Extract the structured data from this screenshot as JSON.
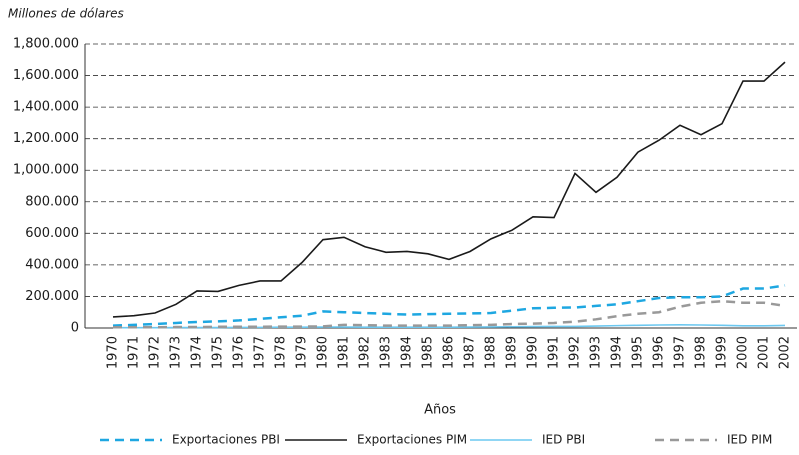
{
  "chart_data": {
    "type": "line",
    "title": "Millones de dólares",
    "x_label": "Años",
    "categories": [
      "1970",
      "1971",
      "1972",
      "1973",
      "1974",
      "1975",
      "1976",
      "1977",
      "1978",
      "1979",
      "1980",
      "1981",
      "1982",
      "1983",
      "1984",
      "1985",
      "1986",
      "1987",
      "1988",
      "1989",
      "1990",
      "1991",
      "1992",
      "1993",
      "1994",
      "1995",
      "1996",
      "1997",
      "1998",
      "1999",
      "2000",
      "2001",
      "2002"
    ],
    "series": [
      {
        "name": "Exportaciones PBI",
        "color": "#1ea7e1",
        "style": "dashed",
        "values": [
          15000,
          20000,
          25000,
          32000,
          38000,
          42000,
          48000,
          58000,
          68000,
          78000,
          105000,
          100000,
          95000,
          90000,
          85000,
          88000,
          90000,
          92000,
          95000,
          110000,
          125000,
          128000,
          130000,
          140000,
          150000,
          170000,
          190000,
          195000,
          195000,
          200000,
          250000,
          250000,
          270000
        ]
      },
      {
        "name": "Exportaciones PIM",
        "color": "#1a1a1a",
        "style": "solid",
        "values": [
          70000,
          78000,
          95000,
          150000,
          235000,
          232000,
          270000,
          298000,
          298000,
          415000,
          560000,
          575000,
          515000,
          480000,
          485000,
          470000,
          435000,
          485000,
          565000,
          620000,
          705000,
          700000,
          980000,
          860000,
          955000,
          1115000,
          1190000,
          1285000,
          1225000,
          1295000,
          1565000,
          1565000,
          1685000
        ]
      },
      {
        "name": "IED PBI",
        "color": "#6cc8f0",
        "style": "solid",
        "values": [
          2000,
          2000,
          2000,
          3000,
          3000,
          3000,
          4000,
          4000,
          5000,
          5000,
          6000,
          6000,
          5000,
          5000,
          5000,
          5000,
          5000,
          6000,
          7000,
          8000,
          9000,
          10000,
          10000,
          12000,
          15000,
          17000,
          19000,
          20000,
          19000,
          17000,
          14000,
          14000,
          16000
        ]
      },
      {
        "name": "IED PIM",
        "color": "#999999",
        "style": "dashed",
        "values": [
          5000,
          5000,
          5000,
          6000,
          6000,
          8000,
          8000,
          8000,
          9000,
          9000,
          10000,
          20000,
          18000,
          15000,
          15000,
          15000,
          15000,
          18000,
          20000,
          25000,
          28000,
          32000,
          40000,
          55000,
          75000,
          90000,
          100000,
          135000,
          160000,
          170000,
          160000,
          160000,
          140000
        ]
      }
    ],
    "ylim": [
      0,
      1800000
    ],
    "yticks": [
      0,
      {
        "value": 200000,
        "label": "200.000"
      },
      {
        "value": 400000,
        "label": "400.000"
      },
      {
        "value": 600000,
        "label": "600.000"
      },
      {
        "value": 800000,
        "label": "800.000"
      },
      {
        "value": 1000000,
        "label": "1,000.000"
      },
      {
        "value": 1200000,
        "label": "1,200.000"
      },
      {
        "value": 1400000,
        "label": "1,400.000"
      },
      {
        "value": 1600000,
        "label": "1,600.000"
      },
      {
        "value": 1800000,
        "label": "1,800.000"
      }
    ],
    "grid": true
  }
}
